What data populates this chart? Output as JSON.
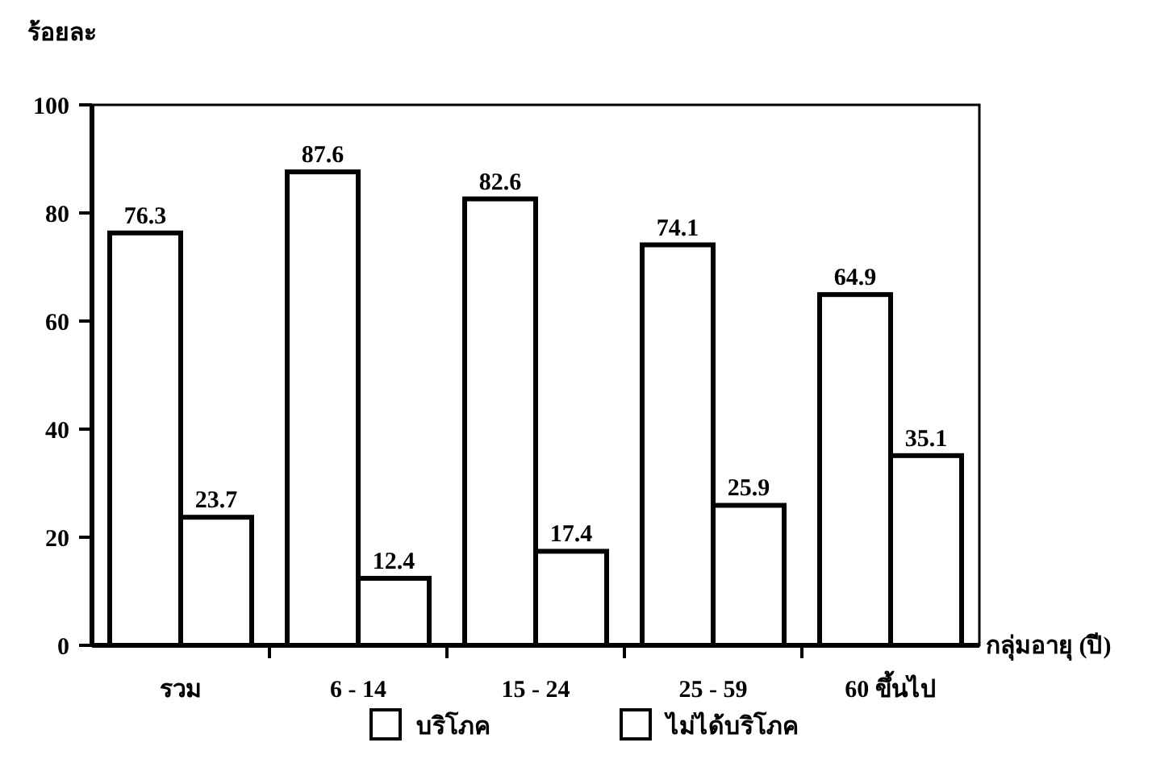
{
  "chart_data": {
    "type": "bar",
    "ylabel": "ร้อยละ",
    "xlabel": "กลุ่มอายุ (ปี)",
    "categories": [
      "รวม",
      "6 - 14",
      "15 - 24",
      "25 - 59",
      "60 ขึ้นไป"
    ],
    "series": [
      {
        "name": "บริโภค",
        "color": "#ffffff",
        "values": [
          76.3,
          87.6,
          82.6,
          74.1,
          64.9
        ]
      },
      {
        "name": "ไม่ได้บริโภค",
        "color": "#ffffff",
        "values": [
          23.7,
          12.4,
          17.4,
          25.9,
          35.1
        ]
      }
    ],
    "ylim": [
      0,
      100
    ],
    "yticks": [
      0,
      20,
      40,
      60,
      80,
      100
    ],
    "data_labels": true,
    "legend": "bottom",
    "grid": false
  }
}
